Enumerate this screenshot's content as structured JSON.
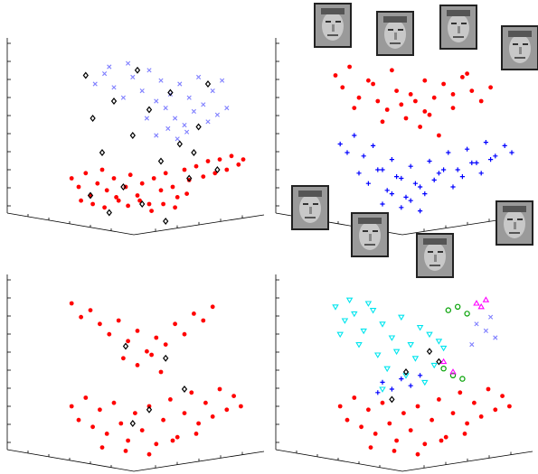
{
  "chart_data": [
    {
      "type": "scatter",
      "xlim": [
        0,
        100
      ],
      "ylim": [
        0,
        100
      ],
      "series": [
        {
          "color": "#ff0000",
          "marker": "dot",
          "x": [
            22,
            25,
            28,
            30,
            33,
            35,
            37,
            40,
            42,
            45,
            47,
            50,
            52,
            55,
            57,
            60,
            62,
            65,
            67,
            70,
            72,
            75,
            78,
            80,
            83,
            85,
            88,
            90,
            93,
            95,
            26,
            31,
            36,
            41,
            46,
            51,
            56,
            61,
            66,
            71
          ],
          "y": [
            25,
            20,
            28,
            15,
            22,
            30,
            18,
            25,
            12,
            20,
            27,
            15,
            22,
            10,
            25,
            18,
            28,
            20,
            14,
            30,
            24,
            32,
            26,
            35,
            28,
            36,
            30,
            38,
            33,
            36,
            12,
            10,
            8,
            14,
            9,
            12,
            6,
            10,
            8,
            16
          ]
        },
        {
          "color": "#8080ff",
          "marker": "x",
          "x": [
            32,
            36,
            40,
            44,
            48,
            52,
            55,
            58,
            60,
            62,
            64,
            66,
            68,
            70,
            72,
            74,
            76,
            78,
            80,
            84,
            88,
            38,
            46,
            54,
            58,
            63,
            67,
            71,
            82,
            86
          ],
          "y": [
            80,
            86,
            78,
            72,
            84,
            76,
            88,
            70,
            82,
            66,
            74,
            60,
            80,
            56,
            72,
            64,
            84,
            68,
            58,
            62,
            66,
            90,
            92,
            60,
            50,
            54,
            48,
            52,
            76,
            82
          ]
        },
        {
          "color": "#000000",
          "marker": "diamond",
          "x": [
            28,
            31,
            35,
            40,
            44,
            48,
            52,
            55,
            60,
            64,
            68,
            72,
            76,
            80,
            84,
            30,
            38,
            50,
            62,
            74
          ],
          "y": [
            85,
            60,
            40,
            70,
            20,
            50,
            10,
            65,
            35,
            75,
            45,
            25,
            55,
            80,
            30,
            15,
            5,
            88,
            0,
            40
          ]
        }
      ]
    },
    {
      "type": "scatter",
      "xlim": [
        0,
        100
      ],
      "ylim": [
        0,
        100
      ],
      "series": [
        {
          "color": "#ff0000",
          "marker": "dot",
          "x": [
            20,
            23,
            26,
            30,
            34,
            38,
            42,
            46,
            50,
            54,
            58,
            62,
            66,
            70,
            74,
            78,
            82,
            86,
            28,
            40,
            48,
            56,
            60,
            64,
            52,
            58,
            70,
            76,
            36,
            44
          ],
          "y": [
            85,
            78,
            90,
            72,
            82,
            70,
            65,
            76,
            60,
            70,
            64,
            72,
            80,
            74,
            84,
            76,
            70,
            78,
            66,
            58,
            68,
            55,
            62,
            50,
            74,
            82,
            66,
            86,
            80,
            88
          ]
        },
        {
          "color": "#0000ff",
          "marker": "plus",
          "x": [
            22,
            25,
            28,
            32,
            36,
            40,
            44,
            48,
            52,
            56,
            60,
            64,
            68,
            72,
            76,
            80,
            84,
            88,
            92,
            95,
            30,
            34,
            38,
            42,
            46,
            50,
            54,
            58,
            62,
            66,
            70,
            74,
            78,
            82,
            86,
            40,
            44,
            48,
            52,
            56
          ],
          "y": [
            45,
            40,
            50,
            38,
            44,
            30,
            36,
            25,
            32,
            20,
            35,
            28,
            40,
            30,
            42,
            34,
            46,
            38,
            44,
            40,
            28,
            22,
            30,
            18,
            26,
            14,
            22,
            16,
            24,
            30,
            20,
            26,
            34,
            28,
            36,
            10,
            16,
            8,
            12,
            6
          ]
        }
      ]
    },
    {
      "type": "scatter",
      "xlim": [
        0,
        100
      ],
      "ylim": [
        0,
        100
      ],
      "series": [
        {
          "color": "#ff0000",
          "marker": "dot",
          "x": [
            22,
            26,
            30,
            34,
            38,
            42,
            46,
            50,
            54,
            58,
            62,
            66,
            70,
            74,
            78,
            82,
            44,
            50,
            56,
            60,
            22,
            25,
            28,
            31,
            34,
            37,
            40,
            43,
            46,
            49,
            52,
            55,
            58,
            61,
            64,
            67,
            70,
            73,
            76,
            79,
            82,
            85,
            88,
            91,
            94,
            35,
            45,
            55,
            65,
            75
          ],
          "y": [
            90,
            82,
            86,
            78,
            72,
            80,
            68,
            74,
            62,
            70,
            66,
            78,
            72,
            84,
            80,
            88,
            58,
            54,
            60,
            50,
            30,
            22,
            35,
            18,
            28,
            14,
            32,
            20,
            10,
            26,
            16,
            30,
            8,
            22,
            34,
            12,
            26,
            38,
            20,
            32,
            24,
            40,
            28,
            36,
            30,
            6,
            4,
            2,
            10,
            14
          ]
        },
        {
          "color": "#000000",
          "marker": "diamond",
          "x": [
            45,
            55,
            62,
            48,
            70
          ],
          "y": [
            65,
            28,
            58,
            20,
            40
          ]
        }
      ]
    },
    {
      "type": "scatter",
      "xlim": [
        0,
        100
      ],
      "ylim": [
        0,
        100
      ],
      "series": [
        {
          "color": "#00e5ee",
          "marker": "tri-down",
          "x": [
            20,
            24,
            28,
            32,
            36,
            40,
            44,
            48,
            52,
            56,
            60,
            64,
            22,
            30,
            38,
            46,
            54,
            62,
            26,
            34,
            42,
            50,
            58,
            66,
            40
          ],
          "y": [
            88,
            80,
            84,
            74,
            86,
            78,
            70,
            82,
            66,
            76,
            72,
            68,
            72,
            66,
            60,
            62,
            58,
            54,
            92,
            90,
            52,
            48,
            44,
            64,
            40
          ]
        },
        {
          "color": "#ff0000",
          "marker": "dot",
          "x": [
            22,
            25,
            28,
            31,
            34,
            37,
            40,
            43,
            46,
            49,
            52,
            55,
            58,
            61,
            64,
            67,
            70,
            73,
            76,
            79,
            82,
            85,
            88,
            91,
            94,
            35,
            45,
            55,
            65,
            75
          ],
          "y": [
            30,
            22,
            35,
            18,
            28,
            14,
            32,
            20,
            10,
            26,
            16,
            30,
            8,
            22,
            34,
            12,
            26,
            38,
            20,
            32,
            24,
            40,
            28,
            36,
            30,
            6,
            4,
            2,
            10,
            14
          ]
        },
        {
          "color": "#00a000",
          "marker": "circle",
          "x": [
            68,
            72,
            76,
            66,
            70,
            74
          ],
          "y": [
            86,
            88,
            84,
            52,
            48,
            46
          ]
        },
        {
          "color": "#ff00ff",
          "marker": "tri-up",
          "x": [
            80,
            84,
            82,
            66,
            70
          ],
          "y": [
            90,
            92,
            88,
            56,
            50
          ]
        },
        {
          "color": "#8080ff",
          "marker": "x",
          "x": [
            80,
            84,
            88,
            78,
            86
          ],
          "y": [
            78,
            74,
            70,
            66,
            82
          ]
        },
        {
          "color": "#0000ff",
          "marker": "plus",
          "x": [
            40,
            44,
            48,
            52,
            38,
            56
          ],
          "y": [
            44,
            40,
            46,
            42,
            38,
            48
          ]
        },
        {
          "color": "#000000",
          "marker": "diamond",
          "x": [
            50,
            60,
            44,
            64
          ],
          "y": [
            50,
            62,
            34,
            56
          ]
        }
      ]
    }
  ]
}
